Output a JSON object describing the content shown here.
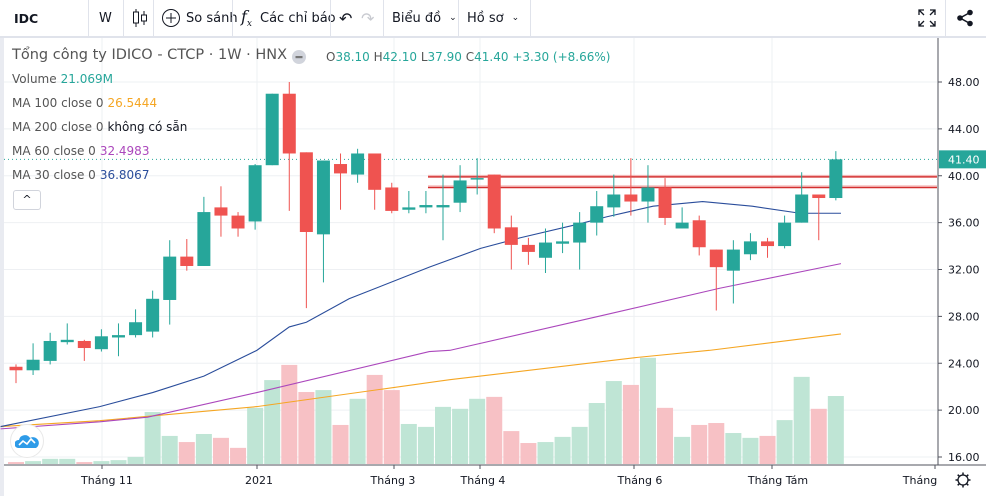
{
  "toolbar": {
    "symbol": "IDC",
    "interval": "W",
    "compare_label": "So sánh",
    "indicators_label": "Các chỉ báo",
    "chart_label": "Biểu đồ",
    "profile_label": "Hồ sơ",
    "icons": [
      "candlestick-icon",
      "plus-circle-icon",
      "fx-icon",
      "undo-icon",
      "redo-icon",
      "chevron-down-icon",
      "fullscreen-icon",
      "share-icon"
    ]
  },
  "legend": {
    "title": "Tổng công ty IDICO - CTCP · 1W · HNX",
    "ohlc": {
      "o_label": "O",
      "o": "38.10",
      "h_label": "H",
      "h": "42.10",
      "l_label": "L",
      "l": "37.90",
      "c_label": "C",
      "c": "41.40",
      "change": "+3.30 (+8.66%)"
    },
    "volume": {
      "label": "Volume",
      "value": "21.069M",
      "color": "#26a69a"
    },
    "ma100": {
      "label": "MA 100 close 0",
      "value": "26.5444",
      "color": "#f5a623"
    },
    "ma200": {
      "label": "MA 200 close 0",
      "value": "không có sẵn",
      "color": "#131722"
    },
    "ma60": {
      "label": "MA 60 close 0",
      "value": "32.4983",
      "color": "#ab47bc"
    },
    "ma30": {
      "label": "MA 30 close 0",
      "value": "36.8067",
      "color": "#2a4d9b"
    },
    "collapse": "^"
  },
  "price_axis": {
    "ticks": [
      "48.00",
      "44.00",
      "40.00",
      "36.00",
      "32.00",
      "28.00",
      "24.00",
      "20.00",
      "16.00"
    ],
    "last_price": "41.40"
  },
  "time_axis": {
    "labels": [
      "Tháng 11",
      "2021",
      "Tháng 3",
      "Tháng 4",
      "Tháng 6",
      "Tháng Tám",
      "Tháng"
    ]
  },
  "colors": {
    "up": "#26a69a",
    "down": "#ef5350",
    "vol_up": "#bfe5d5",
    "vol_down": "#f7c1c5",
    "hline": "#d32f2f"
  },
  "chart_data": {
    "type": "candlestick",
    "ylim": [
      16,
      48
    ],
    "candles": [
      [
        23.7,
        23.9,
        22.3,
        23.4
      ],
      [
        23.4,
        25.7,
        23.0,
        24.3
      ],
      [
        24.2,
        26.6,
        23.9,
        25.9
      ],
      [
        25.8,
        27.4,
        25.6,
        26.0
      ],
      [
        25.9,
        26.0,
        24.2,
        25.3
      ],
      [
        25.2,
        26.9,
        25.0,
        26.3
      ],
      [
        26.2,
        27.4,
        24.6,
        26.4
      ],
      [
        26.4,
        28.6,
        26.2,
        27.5
      ],
      [
        26.7,
        30.2,
        26.2,
        29.5
      ],
      [
        29.4,
        34.5,
        27.3,
        33.1
      ],
      [
        33.1,
        34.6,
        31.9,
        32.3
      ],
      [
        32.3,
        38.2,
        32.3,
        36.9
      ],
      [
        37.3,
        39.1,
        34.8,
        36.6
      ],
      [
        36.6,
        36.9,
        34.8,
        35.5
      ],
      [
        36.1,
        41.0,
        35.4,
        40.9
      ],
      [
        40.9,
        47.0,
        40.9,
        47.0
      ],
      [
        47.0,
        48.0,
        37.0,
        41.9
      ],
      [
        42.0,
        42.0,
        28.7,
        35.2
      ],
      [
        35.0,
        41.3,
        30.9,
        41.3
      ],
      [
        41.0,
        41.9,
        37.1,
        40.2
      ],
      [
        40.1,
        42.3,
        39.4,
        41.9
      ],
      [
        41.9,
        41.9,
        37.1,
        38.8
      ],
      [
        39.0,
        39.4,
        36.8,
        37.0
      ],
      [
        37.1,
        38.7,
        36.8,
        37.3
      ],
      [
        37.3,
        38.7,
        36.8,
        37.5
      ],
      [
        37.3,
        40.1,
        34.5,
        37.5
      ],
      [
        37.7,
        40.9,
        36.9,
        39.6
      ],
      [
        39.7,
        41.5,
        38.4,
        39.8
      ],
      [
        40.1,
        40.1,
        35.1,
        35.5
      ],
      [
        35.6,
        36.6,
        32.0,
        34.1
      ],
      [
        34.1,
        34.7,
        32.4,
        33.5
      ],
      [
        33.0,
        35.5,
        31.7,
        34.3
      ],
      [
        34.2,
        36.0,
        33.4,
        34.4
      ],
      [
        34.3,
        36.9,
        32.0,
        36.0
      ],
      [
        36.0,
        38.7,
        34.9,
        37.4
      ],
      [
        37.3,
        40.1,
        36.5,
        38.4
      ],
      [
        38.4,
        41.5,
        36.6,
        37.8
      ],
      [
        37.8,
        40.9,
        36.0,
        39.0
      ],
      [
        39.0,
        39.8,
        35.8,
        36.4
      ],
      [
        35.5,
        37.3,
        35.5,
        36.0
      ],
      [
        36.2,
        36.6,
        33.2,
        33.9
      ],
      [
        33.7,
        33.7,
        28.5,
        32.2
      ],
      [
        31.9,
        34.5,
        29.1,
        33.7
      ],
      [
        33.3,
        35.1,
        32.8,
        34.4
      ],
      [
        34.4,
        34.7,
        33.0,
        34.0
      ],
      [
        34.0,
        36.6,
        33.8,
        36.0
      ],
      [
        36.0,
        40.3,
        36.0,
        38.4
      ],
      [
        38.4,
        38.4,
        34.5,
        38.1
      ],
      [
        38.1,
        42.1,
        37.9,
        41.4
      ]
    ],
    "volume_millions": [
      0.6,
      0.9,
      1.6,
      1.6,
      0.6,
      0.9,
      1.2,
      2.2,
      16.1,
      8.7,
      6.8,
      9.3,
      8.1,
      5.0,
      17.4,
      26.0,
      30.7,
      22.3,
      22.9,
      12.1,
      20.2,
      27.6,
      22.9,
      12.4,
      11.5,
      17.7,
      17.1,
      20.2,
      20.8,
      10.2,
      6.5,
      6.8,
      8.4,
      11.5,
      18.9,
      25.7,
      24.5,
      32.9,
      17.4,
      8.4,
      12.1,
      12.7,
      9.6,
      8.1,
      8.7,
      13.6,
      27.0,
      17.1,
      21.069
    ],
    "ma30": [
      [
        -0.9,
        18.6
      ],
      [
        4.9,
        20.3
      ],
      [
        8,
        21.5
      ],
      [
        11,
        22.9
      ],
      [
        14.1,
        25.1
      ],
      [
        16,
        27.1
      ],
      [
        17,
        27.5
      ],
      [
        19.5,
        29.5
      ],
      [
        24.2,
        32.2
      ],
      [
        27.2,
        33.8
      ],
      [
        29.5,
        34.7
      ],
      [
        33,
        35.9
      ],
      [
        34.6,
        36.5
      ],
      [
        37.3,
        37.4
      ],
      [
        40.2,
        37.8
      ],
      [
        43.1,
        37.4
      ],
      [
        45.9,
        36.8
      ],
      [
        48.3,
        36.8
      ]
    ],
    "ma60": [
      [
        -0.9,
        18.4
      ],
      [
        4.9,
        19.0
      ],
      [
        7.7,
        19.4
      ],
      [
        14.1,
        21.5
      ],
      [
        24.2,
        25.0
      ],
      [
        25.4,
        25.1
      ],
      [
        34.4,
        28.1
      ],
      [
        41.2,
        30.4
      ],
      [
        48.3,
        32.5
      ]
    ],
    "ma100": [
      [
        -0.9,
        18.6
      ],
      [
        4.9,
        19.1
      ],
      [
        14.1,
        20.3
      ],
      [
        25.4,
        22.6
      ],
      [
        36.4,
        24.5
      ],
      [
        40.6,
        25.1
      ],
      [
        48.3,
        26.5
      ]
    ],
    "horizontal_lines": [
      39.9,
      39.0
    ],
    "last_price": 41.4
  }
}
